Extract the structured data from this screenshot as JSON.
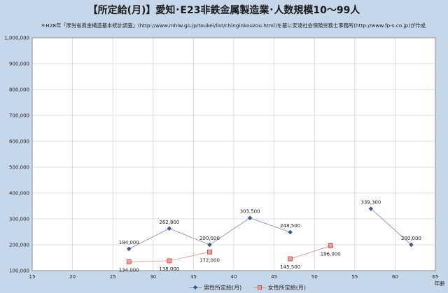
{
  "chart_data": {
    "type": "line",
    "title": "【所定給(月)】愛知･E23非鉄金属製造業･人数規模10～99人",
    "subtitle": "＊H28年「厚労省賃金構造基本統計調査」(http://www.mhlw.go.jp/toukei/list/chinginkouzou.html)を基に安達社会保険労務士事務所(http://www.fp-s.co.jp)が作成",
    "xlabel": "年齢",
    "ylabel": "",
    "xlim": [
      15,
      65
    ],
    "ylim": [
      100000,
      1000000
    ],
    "x_ticks": [
      "15",
      "20",
      "25",
      "30",
      "35",
      "40",
      "45",
      "50",
      "55",
      "60",
      "65"
    ],
    "y_ticks": [
      "100,000",
      "200,000",
      "300,000",
      "400,000",
      "500,000",
      "600,000",
      "700,000",
      "800,000",
      "900,000",
      "1,000,000"
    ],
    "grid": true,
    "legend_position": "bottom",
    "series": [
      {
        "name": "男性所定給(月)",
        "color": "#3d5a8c",
        "marker": "diamond",
        "x": [
          27,
          32,
          37,
          42,
          47,
          57,
          62
        ],
        "y": [
          184000,
          262800,
          200000,
          303500,
          248500,
          339300,
          200000
        ],
        "labels": [
          "184,000",
          "262,800",
          "200,000",
          "303,500",
          "248,500",
          "339,300",
          "200,000"
        ],
        "breaks_after": [
          4
        ]
      },
      {
        "name": "女性所定給(月)",
        "color": "#c0504d",
        "marker": "square",
        "x": [
          27,
          32,
          37,
          47,
          52
        ],
        "y": [
          134000,
          138000,
          172000,
          145500,
          196000
        ],
        "labels": [
          "134,000",
          "138,000",
          "172,000",
          "145,500",
          "196,000"
        ],
        "breaks_after": [
          2
        ]
      }
    ]
  }
}
